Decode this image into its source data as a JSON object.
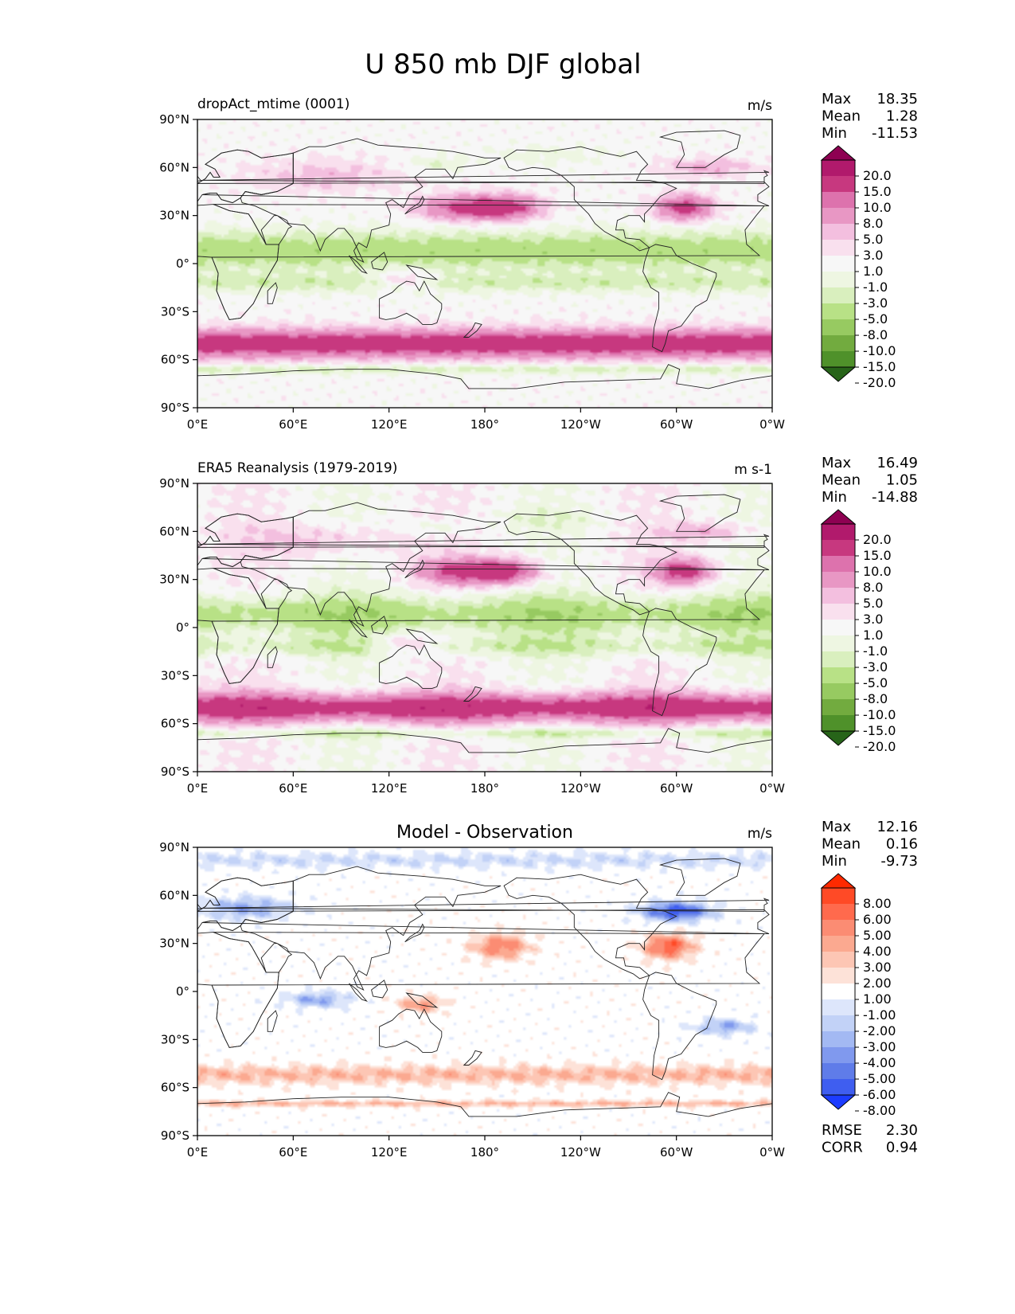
{
  "figure": {
    "title": "U 850 mb DJF global"
  },
  "chart_data": [
    {
      "type": "heatmap",
      "panel": "model",
      "title": "dropAct_mtime (0001)",
      "units": "m/s",
      "stats": {
        "Max": "18.35",
        "Mean": "1.28",
        "Min": "-11.53"
      },
      "x": {
        "range": [
          0,
          360
        ],
        "ticks": [
          "0°E",
          "60°E",
          "120°E",
          "180°",
          "120°W",
          "60°W",
          "0°W"
        ]
      },
      "y": {
        "range": [
          -90,
          90
        ],
        "ticks": [
          "90°N",
          "60°N",
          "30°N",
          "0°",
          "30°S",
          "60°S",
          "90°S"
        ]
      },
      "colorbar": {
        "levels": [
          "20.0",
          "15.0",
          "10.0",
          "8.0",
          "5.0",
          "3.0",
          "1.0",
          "-1.0",
          "-3.0",
          "-5.0",
          "-8.0",
          "-10.0",
          "-15.0",
          "-20.0"
        ],
        "colors": [
          "#8e0152",
          "#b11a6c",
          "#c7387f",
          "#dd72ad",
          "#e897c4",
          "#f3bfdf",
          "#f9e0ee",
          "#f7f7f7",
          "#eef6e2",
          "#d9efbe",
          "#b8e186",
          "#97ca61",
          "#72ab3f",
          "#4f912a",
          "#276419"
        ]
      },
      "map": "u850-model"
    },
    {
      "type": "heatmap",
      "panel": "observation",
      "title": "ERA5 Reanalysis (1979-2019)",
      "units": "m s-1",
      "stats": {
        "Max": "16.49",
        "Mean": "1.05",
        "Min": "-14.88"
      },
      "x": {
        "range": [
          0,
          360
        ],
        "ticks": [
          "0°E",
          "60°E",
          "120°E",
          "180°",
          "120°W",
          "60°W",
          "0°W"
        ]
      },
      "y": {
        "range": [
          -90,
          90
        ],
        "ticks": [
          "90°N",
          "60°N",
          "30°N",
          "0°",
          "30°S",
          "60°S",
          "90°S"
        ]
      },
      "colorbar": {
        "levels": [
          "20.0",
          "15.0",
          "10.0",
          "8.0",
          "5.0",
          "3.0",
          "1.0",
          "-1.0",
          "-3.0",
          "-5.0",
          "-8.0",
          "-10.0",
          "-15.0",
          "-20.0"
        ],
        "colors": [
          "#8e0152",
          "#b11a6c",
          "#c7387f",
          "#dd72ad",
          "#e897c4",
          "#f3bfdf",
          "#f9e0ee",
          "#f7f7f7",
          "#eef6e2",
          "#d9efbe",
          "#b8e186",
          "#97ca61",
          "#72ab3f",
          "#4f912a",
          "#276419"
        ]
      },
      "map": "u850-obs"
    },
    {
      "type": "heatmap",
      "panel": "difference",
      "title": "Model - Observation",
      "units": "m/s",
      "stats": {
        "Max": "12.16",
        "Mean": "0.16",
        "Min": "-9.73"
      },
      "rmse": {
        "label": "RMSE",
        "value": "2.30"
      },
      "corr": {
        "label": "CORR",
        "value": "0.94"
      },
      "x": {
        "range": [
          0,
          360
        ],
        "ticks": [
          "0°E",
          "60°E",
          "120°E",
          "180°",
          "120°W",
          "60°W",
          "0°W"
        ]
      },
      "y": {
        "range": [
          -90,
          90
        ],
        "ticks": [
          "90°N",
          "60°N",
          "30°N",
          "0°",
          "30°S",
          "60°S",
          "90°S"
        ]
      },
      "colorbar": {
        "levels": [
          "8.00",
          "6.00",
          "5.00",
          "4.00",
          "3.00",
          "2.00",
          "1.00",
          "-1.00",
          "-2.00",
          "-3.00",
          "-4.00",
          "-5.00",
          "-6.00",
          "-8.00"
        ],
        "colors": [
          "#ff2a00",
          "#ff4a26",
          "#ff6a4d",
          "#fb8c73",
          "#fba990",
          "#fdc6b4",
          "#fde2d8",
          "#ffffff",
          "#dde6fb",
          "#c2d2f7",
          "#a3b9f3",
          "#8099ee",
          "#5f7ce9",
          "#3f5ef0",
          "#1c3cff"
        ]
      },
      "map": "u850-diff"
    }
  ]
}
